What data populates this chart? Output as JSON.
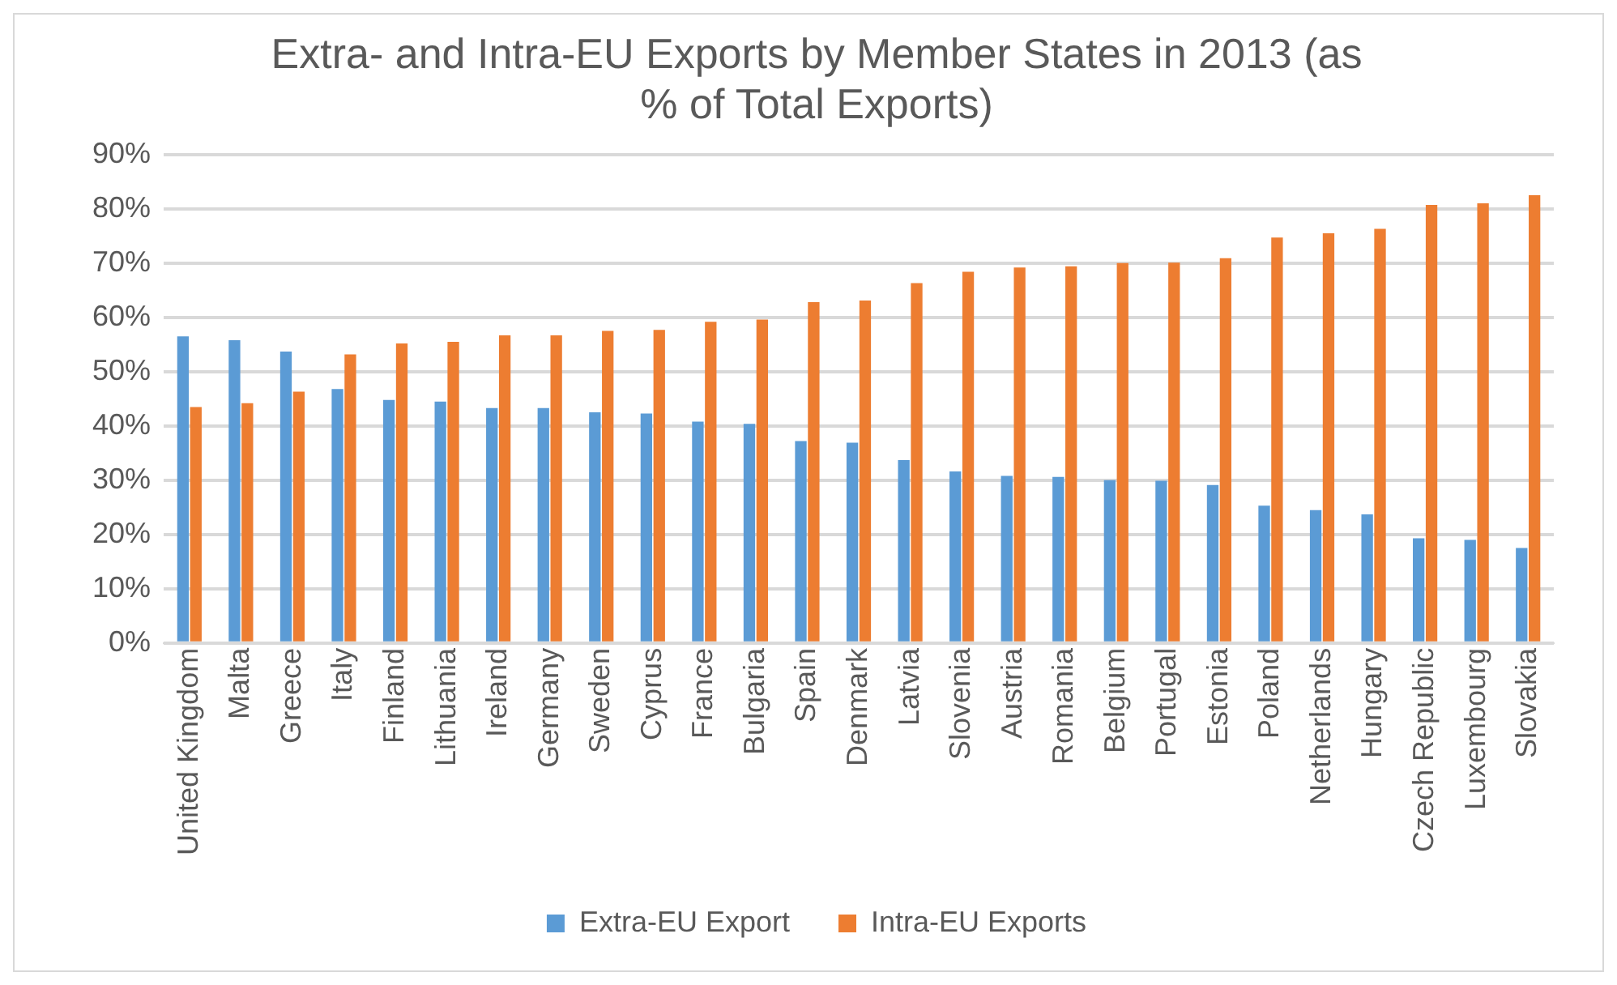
{
  "chart_data": {
    "type": "bar",
    "title": "Extra- and Intra-EU Exports by Member States in 2013 (as % of Total Exports)",
    "categories": [
      "United Kingdom",
      "Malta",
      "Greece",
      "Italy",
      "Finland",
      "Lithuania",
      "Ireland",
      "Germany",
      "Sweden",
      "Cyprus",
      "France",
      "Bulgaria",
      "Spain",
      "Denmark",
      "Latvia",
      "Slovenia",
      "Austria",
      "Romania",
      "Belgium",
      "Portugal",
      "Estonia",
      "Poland",
      "Netherlands",
      "Hungary",
      "Czech Republic",
      "Luxembourg",
      "Slovakia"
    ],
    "series": [
      {
        "name": "Extra-EU Export",
        "color": "#5b9bd5",
        "values": [
          56.5,
          55.8,
          53.7,
          46.8,
          44.8,
          44.5,
          43.3,
          43.3,
          42.5,
          42.3,
          40.8,
          40.4,
          37.2,
          36.9,
          33.7,
          31.6,
          30.8,
          30.6,
          30.0,
          29.9,
          29.1,
          25.3,
          24.5,
          23.7,
          19.3,
          19.0,
          17.5
        ]
      },
      {
        "name": "Intra-EU Exports",
        "color": "#ed7d31",
        "values": [
          43.5,
          44.2,
          46.3,
          53.2,
          55.2,
          55.5,
          56.7,
          56.7,
          57.5,
          57.7,
          59.2,
          59.6,
          62.8,
          63.1,
          66.3,
          68.4,
          69.2,
          69.4,
          70.0,
          70.1,
          70.9,
          74.7,
          75.5,
          76.3,
          80.7,
          81.0,
          82.5
        ]
      }
    ],
    "ylim": [
      0,
      90
    ],
    "yticks": [
      {
        "value": 0,
        "label": "0%"
      },
      {
        "value": 10,
        "label": "10%"
      },
      {
        "value": 20,
        "label": "20%"
      },
      {
        "value": 30,
        "label": "30%"
      },
      {
        "value": 40,
        "label": "40%"
      },
      {
        "value": 50,
        "label": "50%"
      },
      {
        "value": 60,
        "label": "60%"
      },
      {
        "value": 70,
        "label": "70%"
      },
      {
        "value": 80,
        "label": "80%"
      },
      {
        "value": 90,
        "label": "90%"
      }
    ],
    "grid": "y",
    "legend": "bottom"
  }
}
